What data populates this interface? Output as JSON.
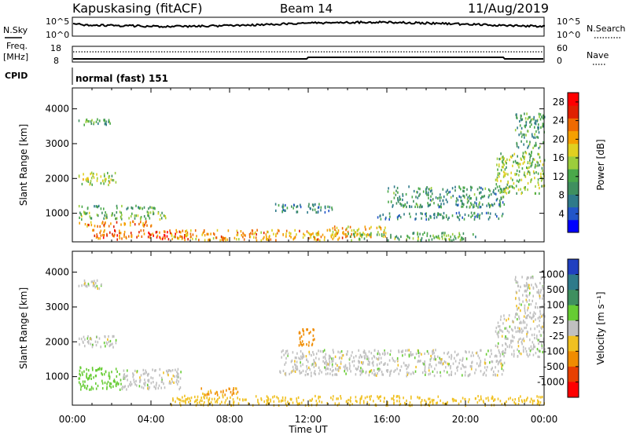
{
  "header": {
    "station": "Kapuskasing (fitACF)",
    "beam": "Beam 14",
    "date": "11/Aug/2019"
  },
  "strips": {
    "nsky_label": "N.Sky",
    "nsearch_label": "N.Search",
    "noise_ticks": [
      "10^5",
      "10^0"
    ],
    "freq_label_1": "Freq.",
    "freq_label_2": "[MHz]",
    "freq_ticks": [
      "18",
      "8"
    ],
    "nave_label": "Nave",
    "nave_ticks": [
      "60",
      "0"
    ],
    "cpid_label": "CPID",
    "cpid_value": "normal (fast) 151"
  },
  "axes": {
    "ylabel": "Slant Range [km]",
    "xlabel": "Time UT",
    "yticks": [
      "1000",
      "2000",
      "3000",
      "4000"
    ],
    "xticks": [
      "00:00",
      "04:00",
      "08:00",
      "12:00",
      "16:00",
      "20:00",
      "00:00"
    ]
  },
  "colorbars": {
    "power_label": "Power [dB]",
    "power_ticks": [
      "4",
      "8",
      "12",
      "16",
      "20",
      "24",
      "28"
    ],
    "power_colors": [
      "#0000ff",
      "#2255c8",
      "#2f7a8a",
      "#3f8f5f",
      "#4aa84a",
      "#9ccd3c",
      "#e0d020",
      "#f5a000",
      "#ee6a00",
      "#e02000",
      "#ff0000"
    ],
    "velocity_label": "Velocity [m s⁻¹]",
    "velocity_ticks": [
      "1000",
      "500",
      "100",
      "25",
      "-25",
      "-100",
      "-500",
      "-1000"
    ],
    "velocity_colors": [
      "#2040c0",
      "#2f7a8a",
      "#3f8f5f",
      "#66cc33",
      "#c0c0c0",
      "#f0c020",
      "#f08c00",
      "#e84000",
      "#ff0000"
    ]
  },
  "chart_data": [
    {
      "type": "heatmap",
      "name": "Power",
      "xlabel": "Time UT",
      "ylabel": "Slant Range [km]",
      "xlim": [
        "00:00",
        "24:00"
      ],
      "ylim": [
        180,
        4600
      ],
      "colorbar": {
        "label": "Power [dB]",
        "range": [
          0,
          30
        ]
      },
      "regions": [
        {
          "t0": 0.3,
          "t1": 1.9,
          "r0": 3550,
          "r1": 3750,
          "value": 11
        },
        {
          "t0": 0.3,
          "t1": 2.2,
          "r0": 1850,
          "r1": 2200,
          "value": 15
        },
        {
          "t0": 0.3,
          "t1": 4.2,
          "r0": 1150,
          "r1": 1250,
          "value": 10
        },
        {
          "t0": 0.3,
          "t1": 4.8,
          "r0": 850,
          "r1": 1080,
          "value": 13
        },
        {
          "t0": 0.3,
          "t1": 4.0,
          "r0": 650,
          "r1": 800,
          "value": 22
        },
        {
          "t0": 1.0,
          "t1": 6.0,
          "r0": 280,
          "r1": 550,
          "value": 25
        },
        {
          "t0": 5.0,
          "t1": 14.0,
          "r0": 250,
          "r1": 550,
          "value": 21
        },
        {
          "t0": 10.3,
          "t1": 13.2,
          "r0": 1050,
          "r1": 1300,
          "value": 8
        },
        {
          "t0": 13.0,
          "t1": 16.0,
          "r0": 350,
          "r1": 650,
          "value": 20
        },
        {
          "t0": 14.0,
          "t1": 20.5,
          "r0": 250,
          "r1": 480,
          "value": 12
        },
        {
          "t0": 16.0,
          "t1": 22.0,
          "r0": 1200,
          "r1": 1800,
          "value": 9
        },
        {
          "t0": 15.5,
          "t1": 22.0,
          "r0": 850,
          "r1": 1050,
          "value": 8
        },
        {
          "t0": 21.5,
          "t1": 24.0,
          "r0": 1600,
          "r1": 2800,
          "value": 14
        },
        {
          "t0": 22.5,
          "t1": 24.0,
          "r0": 2900,
          "r1": 3900,
          "value": 10
        }
      ]
    },
    {
      "type": "heatmap",
      "name": "Velocity",
      "xlabel": "Time UT",
      "ylabel": "Slant Range [km]",
      "xlim": [
        "00:00",
        "24:00"
      ],
      "ylim": [
        180,
        4600
      ],
      "colorbar": {
        "label": "Velocity [m s⁻¹]",
        "range": [
          -1000,
          1000
        ]
      },
      "regions": [
        {
          "t0": 0.3,
          "t1": 1.5,
          "r0": 3550,
          "r1": 3800,
          "value": 0
        },
        {
          "t0": 0.3,
          "t1": 2.2,
          "r0": 1850,
          "r1": 2200,
          "value": 0
        },
        {
          "t0": 0.3,
          "t1": 2.5,
          "r0": 650,
          "r1": 1300,
          "value": 60
        },
        {
          "t0": 2.5,
          "t1": 5.5,
          "r0": 650,
          "r1": 1250,
          "value": 0
        },
        {
          "t0": 6.5,
          "t1": 8.5,
          "r0": 500,
          "r1": 700,
          "value": -120
        },
        {
          "t0": 5.0,
          "t1": 24.0,
          "r0": 200,
          "r1": 480,
          "value": -60
        },
        {
          "t0": 11.5,
          "t1": 12.3,
          "r0": 1900,
          "r1": 2400,
          "value": -300
        },
        {
          "t0": 10.5,
          "t1": 22.0,
          "r0": 1050,
          "r1": 1800,
          "value": 0
        },
        {
          "t0": 21.5,
          "t1": 24.0,
          "r0": 1600,
          "r1": 2800,
          "value": 0
        },
        {
          "t0": 22.5,
          "t1": 24.0,
          "r0": 2800,
          "r1": 3900,
          "value": 0
        }
      ]
    }
  ]
}
